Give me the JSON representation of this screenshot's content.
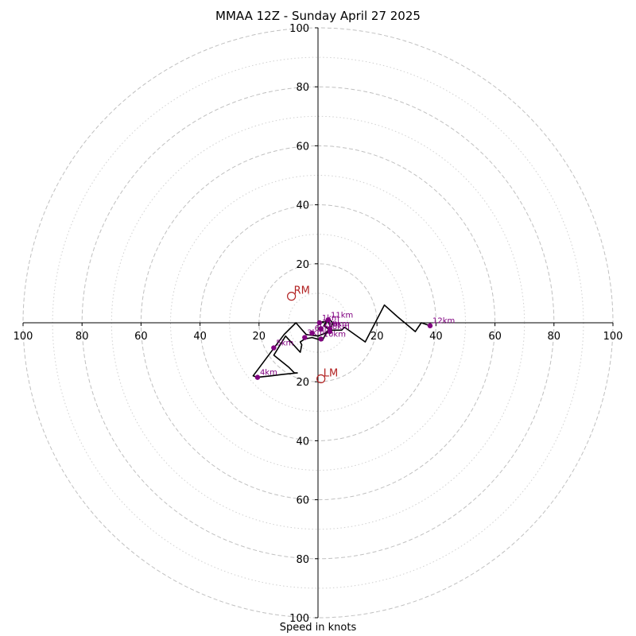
{
  "chart_data": {
    "type": "hodograph",
    "title": "MMAA 12Z - Sunday April 27 2025",
    "xlabel": "Speed in knots",
    "axis_range": [
      -100,
      100
    ],
    "ring_major_step": 20,
    "ring_minor_step": 10,
    "grid": true,
    "x_ticks": [
      "100",
      "80",
      "60",
      "40",
      "20",
      "20",
      "40",
      "60",
      "80",
      "100"
    ],
    "x_tick_values": [
      -100,
      -80,
      -60,
      -40,
      -20,
      20,
      40,
      60,
      80,
      100
    ],
    "y_ticks": [
      "100",
      "80",
      "60",
      "40",
      "20",
      "20",
      "40",
      "60",
      "80",
      "100"
    ],
    "y_tick_values": [
      100,
      80,
      60,
      40,
      20,
      -20,
      -40,
      -60,
      -80,
      -100
    ],
    "colors": {
      "trace": "#000000",
      "height_marker": "#800080",
      "storm_motion": "#b22222",
      "grid": "#c0c0c0"
    },
    "trace": [
      [
        0,
        0
      ],
      [
        2.5,
        0.5
      ],
      [
        3.5,
        1.0
      ],
      [
        3.0,
        1.5
      ],
      [
        3.5,
        0.5
      ],
      [
        4.5,
        -2.5
      ],
      [
        3.5,
        -3.0
      ],
      [
        2.5,
        -4.0
      ],
      [
        1.5,
        -6.0
      ],
      [
        -2.0,
        -5.0
      ],
      [
        -4.5,
        -5.5
      ],
      [
        -6.0,
        -6.5
      ],
      [
        -5.5,
        -7.5
      ],
      [
        -6.0,
        -10.0
      ],
      [
        -11.0,
        -4.5
      ],
      [
        -15.0,
        -11.0
      ],
      [
        -10.0,
        -15.0
      ],
      [
        -8.0,
        -17.0
      ],
      [
        -7.0,
        -17.0
      ],
      [
        -12.0,
        -17.5
      ],
      [
        -16.0,
        -18.0
      ],
      [
        -20.5,
        -18.5
      ],
      [
        -22.0,
        -18.0
      ],
      [
        -11.5,
        -4.0
      ],
      [
        -7.5,
        0.0
      ],
      [
        -4.0,
        -4.0
      ],
      [
        0.0,
        -4.5
      ],
      [
        2.5,
        -3.5
      ],
      [
        3.5,
        -2.5
      ],
      [
        4.0,
        -3.0
      ],
      [
        5.0,
        0.0
      ],
      [
        3.5,
        1.5
      ],
      [
        2.0,
        -1.0
      ],
      [
        4.0,
        -2.5
      ],
      [
        6.0,
        -2.5
      ],
      [
        8.0,
        -2.5
      ],
      [
        9.0,
        -1.5
      ],
      [
        16.0,
        -6.5
      ],
      [
        22.5,
        6.0
      ],
      [
        27.0,
        2.0
      ],
      [
        33.0,
        -3.0
      ],
      [
        35.0,
        0.0
      ],
      [
        38.0,
        -1.0
      ]
    ],
    "height_markers": [
      {
        "label": "1km",
        "u": 0.5,
        "v": 0.0
      },
      {
        "label": "2km",
        "u": 1.0,
        "v": -2.0
      },
      {
        "label": "3km",
        "u": -4.5,
        "v": -5.0
      },
      {
        "label": "4km",
        "u": -20.5,
        "v": -18.5
      },
      {
        "label": "5km",
        "u": -15.0,
        "v": -8.5
      },
      {
        "label": "6km",
        "u": -2.0,
        "v": -3.5
      },
      {
        "label": "7km",
        "u": 1.0,
        "v": -2.0
      },
      {
        "label": "8km",
        "u": 4.0,
        "v": -3.0
      },
      {
        "label": "9km",
        "u": 4.0,
        "v": -2.0
      },
      {
        "label": "10km",
        "u": 1.0,
        "v": -5.5
      },
      {
        "label": "11km",
        "u": 3.5,
        "v": 1.0
      },
      {
        "label": "12km",
        "u": 38.0,
        "v": -1.0
      }
    ],
    "storm_motion": [
      {
        "label": "RM",
        "u": -9.0,
        "v": 9.0
      },
      {
        "label": "LM",
        "u": 1.0,
        "v": -19.0
      }
    ]
  }
}
